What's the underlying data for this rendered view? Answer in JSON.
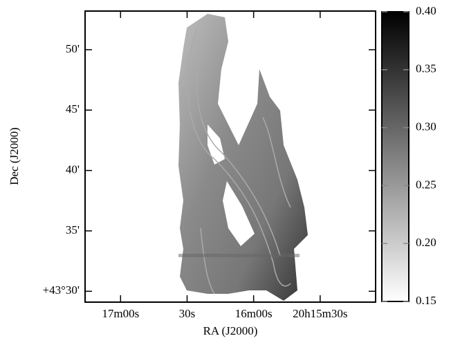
{
  "chart_data": {
    "type": "image",
    "xlabel": "RA (J2000)",
    "ylabel": "Dec (J2000)",
    "xlim": [
      1036,
      905
    ],
    "ylim": [
      29.1,
      53.2
    ],
    "xticks": [
      {
        "value": 1020,
        "label": "17m00s"
      },
      {
        "value": 990,
        "label": "30s"
      },
      {
        "value": 960,
        "label": "16m00s"
      },
      {
        "value": 930,
        "label": "20h15m30s"
      }
    ],
    "yticks": [
      {
        "value": 30,
        "label": "+43°30'"
      },
      {
        "value": 35,
        "label": "35'"
      },
      {
        "value": 40,
        "label": "40'"
      },
      {
        "value": 45,
        "label": "45'"
      },
      {
        "value": 50,
        "label": "50'"
      }
    ],
    "colorbar": {
      "clim": [
        0.15,
        0.4
      ],
      "ticks": [
        0.15,
        {
          "value": 0.2,
          "label": "0.20"
        },
        0.25,
        {
          "value": 0.3,
          "label": "0.30"
        },
        0.35,
        {
          "value": 0.4,
          "label": "0.40"
        }
      ]
    }
  }
}
